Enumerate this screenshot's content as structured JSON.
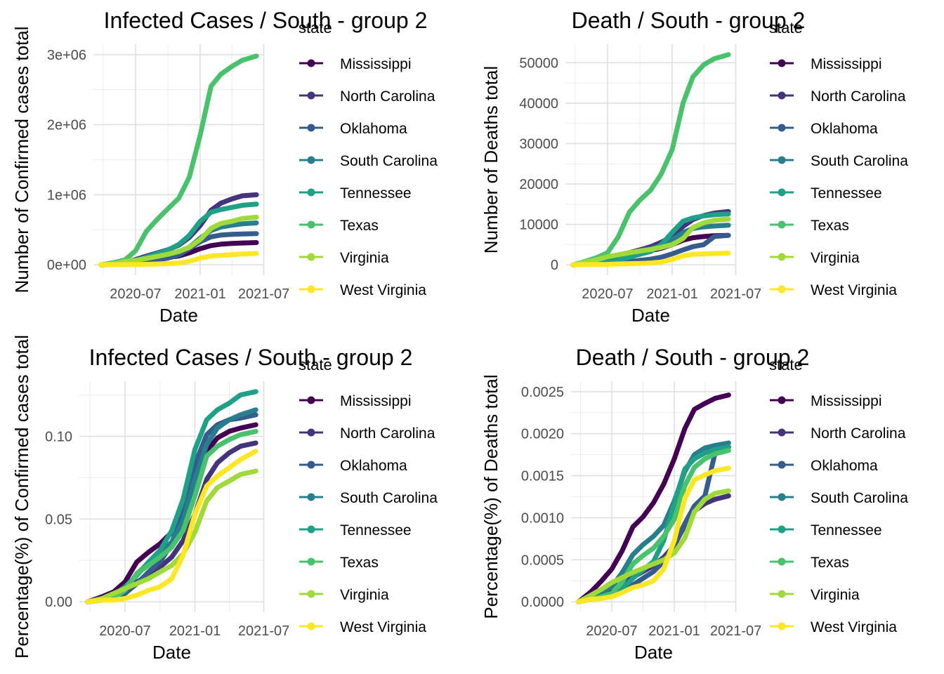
{
  "chart_data": [
    {
      "type": "line",
      "title": "Infected Cases / South - group 2",
      "xlabel": "Date",
      "ylabel": "Number of Confirmed cases total",
      "xlim": [
        "2020-03-25",
        "2021-06-10"
      ],
      "ylim": [
        0,
        3000000
      ],
      "x_ticks": [
        [
          "2020-07-01",
          "2020-07"
        ],
        [
          "2021-01-01",
          "2021-01"
        ],
        [
          "2021-07-01",
          "2021-07"
        ]
      ],
      "y_ticks": [
        [
          0,
          "0e+00"
        ],
        [
          1000000,
          "1e+06"
        ],
        [
          2000000,
          "2e+06"
        ],
        [
          3000000,
          "3e+06"
        ]
      ],
      "grid": true,
      "legend": {
        "title": "state",
        "position": "right"
      },
      "x": [
        "2020-03-25",
        "2020-05-01",
        "2020-06-01",
        "2020-07-01",
        "2020-08-01",
        "2020-09-01",
        "2020-10-01",
        "2020-11-01",
        "2020-12-01",
        "2021-01-01",
        "2021-02-01",
        "2021-03-01",
        "2021-04-01",
        "2021-05-01",
        "2021-06-10"
      ],
      "series": [
        {
          "name": "Mississippi",
          "values": [
            0,
            8000,
            18000,
            30000,
            65000,
            88000,
            105000,
            125000,
            170000,
            230000,
            275000,
            295000,
            305000,
            312000,
            318000
          ]
        },
        {
          "name": "North Carolina",
          "values": [
            0,
            12000,
            33000,
            75000,
            125000,
            170000,
            215000,
            280000,
            390000,
            560000,
            780000,
            880000,
            940000,
            985000,
            1000000
          ]
        },
        {
          "name": "Oklahoma",
          "values": [
            0,
            4000,
            9000,
            20000,
            45000,
            70000,
            95000,
            140000,
            230000,
            330000,
            400000,
            425000,
            435000,
            440000,
            445000
          ]
        },
        {
          "name": "South Carolina",
          "values": [
            0,
            7000,
            15000,
            35000,
            90000,
            120000,
            155000,
            185000,
            250000,
            380000,
            490000,
            540000,
            565000,
            585000,
            598000
          ]
        },
        {
          "name": "Tennessee",
          "values": [
            0,
            12000,
            28000,
            60000,
            110000,
            160000,
            210000,
            290000,
            420000,
            620000,
            750000,
            790000,
            820000,
            850000,
            866000
          ]
        },
        {
          "name": "Texas",
          "values": [
            0,
            32000,
            70000,
            200000,
            480000,
            650000,
            800000,
            950000,
            1250000,
            1850000,
            2550000,
            2720000,
            2830000,
            2920000,
            2980000
          ]
        },
        {
          "name": "Virginia",
          "values": [
            0,
            15000,
            45000,
            65000,
            90000,
            120000,
            150000,
            190000,
            250000,
            360000,
            520000,
            590000,
            620000,
            660000,
            680000
          ]
        },
        {
          "name": "West Virginia",
          "values": [
            0,
            1500,
            2500,
            3800,
            7000,
            12000,
            17000,
            25000,
            50000,
            95000,
            125000,
            135000,
            145000,
            155000,
            162000
          ]
        }
      ]
    },
    {
      "type": "line",
      "title": "Death / South - group 2",
      "xlabel": "Date",
      "ylabel": "Number of Deaths total",
      "xlim": [
        "2020-03-25",
        "2021-06-10"
      ],
      "ylim": [
        0,
        52000
      ],
      "x_ticks": [
        [
          "2020-07-01",
          "2020-07"
        ],
        [
          "2021-01-01",
          "2021-01"
        ],
        [
          "2021-07-01",
          "2021-07"
        ]
      ],
      "y_ticks": [
        [
          0,
          "0"
        ],
        [
          10000,
          "10000"
        ],
        [
          20000,
          "20000"
        ],
        [
          30000,
          "30000"
        ],
        [
          40000,
          "40000"
        ],
        [
          50000,
          "50000"
        ]
      ],
      "grid": true,
      "legend": {
        "title": "state",
        "position": "right"
      },
      "x": [
        "2020-03-25",
        "2020-05-01",
        "2020-06-01",
        "2020-07-01",
        "2020-08-01",
        "2020-09-01",
        "2020-10-01",
        "2020-11-01",
        "2020-12-01",
        "2021-01-01",
        "2021-02-01",
        "2021-03-01",
        "2021-04-01",
        "2021-05-01",
        "2021-06-10"
      ],
      "series": [
        {
          "name": "Mississippi",
          "values": [
            0,
            350,
            700,
            1100,
            1700,
            2600,
            3000,
            3500,
            4100,
            5000,
            6100,
            6700,
            7000,
            7200,
            7300
          ]
        },
        {
          "name": "North Carolina",
          "values": [
            0,
            500,
            1200,
            1500,
            2300,
            3000,
            3700,
            4500,
            5600,
            7000,
            9500,
            11200,
            12200,
            12800,
            13200
          ]
        },
        {
          "name": "Oklahoma",
          "values": [
            0,
            200,
            350,
            400,
            550,
            800,
            1100,
            1400,
            1900,
            2700,
            3700,
            4500,
            5000,
            7000,
            7300
          ]
        },
        {
          "name": "South Carolina",
          "values": [
            0,
            250,
            600,
            900,
            1800,
            2900,
            3500,
            4000,
            4700,
            6200,
            8000,
            9000,
            9400,
            9600,
            9800
          ]
        },
        {
          "name": "Tennessee",
          "values": [
            0,
            200,
            400,
            600,
            1100,
            1900,
            2600,
            3300,
            5000,
            8000,
            10800,
            11600,
            12100,
            12400,
            12600
          ]
        },
        {
          "name": "Texas",
          "values": [
            0,
            900,
            1800,
            3000,
            7000,
            13000,
            16000,
            18500,
            22500,
            28500,
            40000,
            46500,
            49500,
            51000,
            52000
          ]
        },
        {
          "name": "Virginia",
          "values": [
            0,
            700,
            1300,
            2000,
            2500,
            3000,
            3400,
            3800,
            4300,
            5000,
            6500,
            9200,
            10400,
            11000,
            11300
          ]
        },
        {
          "name": "West Virginia",
          "values": [
            0,
            50,
            80,
            100,
            200,
            300,
            350,
            450,
            700,
            1300,
            2200,
            2600,
            2700,
            2800,
            2900
          ]
        }
      ]
    },
    {
      "type": "line",
      "title": "Infected Cases / South - group 2",
      "xlabel": "Date",
      "ylabel": "Percentage(%) of Confirmed cases total",
      "xlim": [
        "2020-03-25",
        "2021-06-10"
      ],
      "ylim": [
        0,
        0.127
      ],
      "x_ticks": [
        [
          "2020-07-01",
          "2020-07"
        ],
        [
          "2021-01-01",
          "2021-01"
        ],
        [
          "2021-07-01",
          "2021-07"
        ]
      ],
      "y_ticks": [
        [
          0,
          "0.00"
        ],
        [
          0.05,
          "0.05"
        ],
        [
          0.1,
          "0.10"
        ]
      ],
      "grid": true,
      "legend": {
        "title": "state",
        "position": "right"
      },
      "x": [
        "2020-03-25",
        "2020-05-01",
        "2020-06-01",
        "2020-07-01",
        "2020-08-01",
        "2020-09-01",
        "2020-10-01",
        "2020-11-01",
        "2020-12-01",
        "2021-01-01",
        "2021-02-01",
        "2021-03-01",
        "2021-04-01",
        "2021-05-01",
        "2021-06-10"
      ],
      "series": [
        {
          "name": "Mississippi",
          "values": [
            0,
            0.003,
            0.006,
            0.012,
            0.024,
            0.03,
            0.035,
            0.042,
            0.056,
            0.076,
            0.091,
            0.099,
            0.103,
            0.105,
            0.107
          ]
        },
        {
          "name": "North Carolina",
          "values": [
            0,
            0.001,
            0.003,
            0.007,
            0.012,
            0.016,
            0.021,
            0.027,
            0.037,
            0.053,
            0.074,
            0.084,
            0.09,
            0.094,
            0.096
          ]
        },
        {
          "name": "Oklahoma",
          "values": [
            0,
            0.001,
            0.002,
            0.005,
            0.011,
            0.018,
            0.024,
            0.035,
            0.058,
            0.083,
            0.101,
            0.107,
            0.11,
            0.111,
            0.113
          ]
        },
        {
          "name": "South Carolina",
          "values": [
            0,
            0.001,
            0.003,
            0.007,
            0.017,
            0.023,
            0.03,
            0.036,
            0.049,
            0.074,
            0.095,
            0.105,
            0.11,
            0.113,
            0.116
          ]
        },
        {
          "name": "Tennessee",
          "values": [
            0,
            0.002,
            0.004,
            0.009,
            0.016,
            0.024,
            0.031,
            0.043,
            0.062,
            0.092,
            0.11,
            0.116,
            0.12,
            0.125,
            0.127
          ]
        },
        {
          "name": "Texas",
          "values": [
            0,
            0.001,
            0.002,
            0.007,
            0.017,
            0.022,
            0.027,
            0.033,
            0.043,
            0.064,
            0.088,
            0.094,
            0.098,
            0.101,
            0.103
          ]
        },
        {
          "name": "Virginia",
          "values": [
            0,
            0.002,
            0.005,
            0.008,
            0.011,
            0.014,
            0.018,
            0.022,
            0.029,
            0.042,
            0.061,
            0.069,
            0.073,
            0.077,
            0.079
          ]
        },
        {
          "name": "West Virginia",
          "values": [
            0,
            0.001,
            0.001,
            0.002,
            0.004,
            0.007,
            0.009,
            0.014,
            0.028,
            0.053,
            0.07,
            0.076,
            0.081,
            0.086,
            0.091
          ]
        }
      ]
    },
    {
      "type": "line",
      "title": "Death / South - group 2",
      "xlabel": "Date",
      "ylabel": "Percentage(%) of Deaths total",
      "xlim": [
        "2020-03-25",
        "2021-06-10"
      ],
      "ylim": [
        0,
        0.0025
      ],
      "x_ticks": [
        [
          "2020-07-01",
          "2020-07"
        ],
        [
          "2021-01-01",
          "2021-01"
        ],
        [
          "2021-07-01",
          "2021-07"
        ]
      ],
      "y_ticks": [
        [
          0,
          "0.0000"
        ],
        [
          0.0005,
          "0.0005"
        ],
        [
          0.001,
          "0.0010"
        ],
        [
          0.0015,
          "0.0015"
        ],
        [
          0.002,
          "0.0020"
        ],
        [
          0.0025,
          "0.0025"
        ]
      ],
      "grid": true,
      "legend": {
        "title": "state",
        "position": "right"
      },
      "x": [
        "2020-03-25",
        "2020-05-01",
        "2020-06-01",
        "2020-07-01",
        "2020-08-01",
        "2020-09-01",
        "2020-10-01",
        "2020-11-01",
        "2020-12-01",
        "2021-01-01",
        "2021-02-01",
        "2021-03-01",
        "2021-04-01",
        "2021-05-01",
        "2021-06-10"
      ],
      "series": [
        {
          "name": "Mississippi",
          "values": [
            0,
            0.00012,
            0.00025,
            0.00039,
            0.00061,
            0.00089,
            0.00101,
            0.00118,
            0.0014,
            0.0017,
            0.00206,
            0.00229,
            0.00236,
            0.00242,
            0.00246
          ]
        },
        {
          "name": "North Carolina",
          "values": [
            0,
            5e-05,
            0.00012,
            0.00015,
            0.00022,
            0.00029,
            0.00036,
            0.00043,
            0.00053,
            0.00067,
            0.00091,
            0.00108,
            0.00117,
            0.00122,
            0.00126
          ]
        },
        {
          "name": "Oklahoma",
          "values": [
            0,
            5e-05,
            9e-05,
            0.0001,
            0.00014,
            0.0002,
            0.00028,
            0.00036,
            0.00048,
            0.00068,
            0.00093,
            0.00114,
            0.00126,
            0.00177,
            0.00184
          ]
        },
        {
          "name": "South Carolina",
          "values": [
            0,
            5e-05,
            0.00012,
            0.00018,
            0.00035,
            0.00056,
            0.00068,
            0.00078,
            0.00091,
            0.0012,
            0.00155,
            0.00175,
            0.00183,
            0.00186,
            0.00189
          ]
        },
        {
          "name": "Tennessee",
          "values": [
            0,
            3e-05,
            6e-05,
            9e-05,
            0.00016,
            0.00028,
            0.00038,
            0.00048,
            0.00073,
            0.00117,
            0.00158,
            0.0017,
            0.00177,
            0.00181,
            0.00184
          ]
        },
        {
          "name": "Texas",
          "values": [
            0,
            3e-05,
            6e-05,
            0.0001,
            0.00024,
            0.00045,
            0.00055,
            0.00064,
            0.00078,
            0.00098,
            0.00138,
            0.0016,
            0.0017,
            0.00176,
            0.0018
          ]
        },
        {
          "name": "Virginia",
          "values": [
            0,
            8e-05,
            0.00015,
            0.00023,
            0.00029,
            0.00035,
            0.0004,
            0.00045,
            0.0005,
            0.00058,
            0.00076,
            0.00107,
            0.00122,
            0.00129,
            0.00132
          ]
        },
        {
          "name": "West Virginia",
          "values": [
            0,
            3e-05,
            4e-05,
            6e-05,
            0.00011,
            0.00017,
            0.0002,
            0.00025,
            0.00039,
            0.00073,
            0.00123,
            0.00145,
            0.00151,
            0.00156,
            0.00159
          ]
        }
      ]
    }
  ],
  "colors": {
    "Mississippi": "#440154",
    "North Carolina": "#46337E",
    "Oklahoma": "#365C8D",
    "South Carolina": "#277F8E",
    "Tennessee": "#1FA187",
    "Texas": "#4AC16D",
    "Virginia": "#9FDA3A",
    "West Virginia": "#FDE725"
  }
}
